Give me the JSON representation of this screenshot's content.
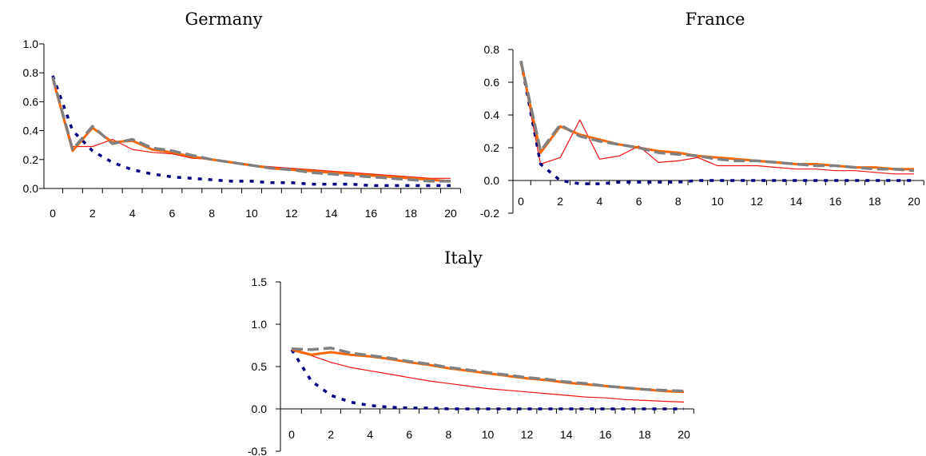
{
  "chart_data": [
    {
      "type": "line",
      "title": "Germany",
      "xlabel": "",
      "ylabel": "",
      "x_ticks": [
        0,
        2,
        4,
        6,
        8,
        10,
        12,
        14,
        16,
        18,
        20
      ],
      "y_ticks": [
        "0.0",
        "0.2",
        "0.4",
        "0.6",
        "0.8",
        "1.0"
      ],
      "ylim": [
        0,
        1.0
      ],
      "grid": false,
      "series": [
        {
          "color": "#ff6600",
          "style": "solid-thick",
          "values": [
            0.76,
            0.26,
            0.42,
            0.32,
            0.33,
            0.27,
            0.25,
            0.22,
            0.2,
            0.18,
            0.16,
            0.14,
            0.13,
            0.12,
            0.11,
            0.1,
            0.09,
            0.08,
            0.07,
            0.06,
            0.05
          ]
        },
        {
          "color": "#808080",
          "style": "dashed-thick",
          "values": [
            0.77,
            0.27,
            0.43,
            0.31,
            0.34,
            0.28,
            0.26,
            0.23,
            0.2,
            0.18,
            0.16,
            0.14,
            0.13,
            0.11,
            0.1,
            0.09,
            0.08,
            0.07,
            0.06,
            0.05,
            0.05
          ]
        },
        {
          "color": "#ee1111",
          "style": "solid-thin",
          "values": [
            0.76,
            0.29,
            0.29,
            0.34,
            0.27,
            0.25,
            0.24,
            0.21,
            0.2,
            0.18,
            0.16,
            0.15,
            0.14,
            0.13,
            0.12,
            0.11,
            0.1,
            0.09,
            0.08,
            0.07,
            0.07
          ]
        },
        {
          "color": "#000080",
          "style": "dotted-thick",
          "values": [
            0.78,
            0.4,
            0.26,
            0.18,
            0.13,
            0.1,
            0.08,
            0.07,
            0.06,
            0.05,
            0.05,
            0.04,
            0.04,
            0.03,
            0.03,
            0.03,
            0.02,
            0.02,
            0.02,
            0.02,
            0.02
          ]
        }
      ]
    },
    {
      "type": "line",
      "title": "France",
      "xlabel": "",
      "ylabel": "",
      "x_ticks": [
        0,
        2,
        4,
        6,
        8,
        10,
        12,
        14,
        16,
        18,
        20
      ],
      "y_ticks": [
        "-0.2",
        "0.0",
        "0.2",
        "0.4",
        "0.6",
        "0.8"
      ],
      "ylim": [
        -0.2,
        0.8
      ],
      "grid": false,
      "series": [
        {
          "color": "#ff6600",
          "style": "solid-thick",
          "values": [
            0.72,
            0.17,
            0.33,
            0.28,
            0.25,
            0.22,
            0.2,
            0.18,
            0.17,
            0.15,
            0.14,
            0.13,
            0.12,
            0.11,
            0.1,
            0.1,
            0.09,
            0.08,
            0.08,
            0.07,
            0.07
          ]
        },
        {
          "color": "#808080",
          "style": "dashed-thick",
          "values": [
            0.73,
            0.18,
            0.34,
            0.27,
            0.24,
            0.22,
            0.2,
            0.17,
            0.16,
            0.15,
            0.13,
            0.12,
            0.12,
            0.11,
            0.1,
            0.09,
            0.09,
            0.08,
            0.07,
            0.07,
            0.06
          ]
        },
        {
          "color": "#ee1111",
          "style": "solid-thin",
          "values": [
            0.72,
            0.1,
            0.14,
            0.37,
            0.13,
            0.15,
            0.21,
            0.11,
            0.12,
            0.14,
            0.09,
            0.09,
            0.09,
            0.08,
            0.07,
            0.07,
            0.06,
            0.06,
            0.05,
            0.04,
            0.04
          ]
        },
        {
          "color": "#000080",
          "style": "dotted-thick",
          "values": [
            0.73,
            0.1,
            0.0,
            -0.02,
            -0.02,
            -0.01,
            -0.01,
            -0.01,
            -0.01,
            0.0,
            0.0,
            0.0,
            0.0,
            0.0,
            0.0,
            0.0,
            0.0,
            0.0,
            0.0,
            0.0,
            0.0
          ]
        }
      ]
    },
    {
      "type": "line",
      "title": "Italy",
      "xlabel": "",
      "ylabel": "",
      "x_ticks": [
        0,
        2,
        4,
        6,
        8,
        10,
        12,
        14,
        16,
        18,
        20
      ],
      "y_ticks": [
        "-0.5",
        "0.0",
        "0.5",
        "1.0",
        "1.5"
      ],
      "ylim": [
        -0.5,
        1.5
      ],
      "grid": false,
      "series": [
        {
          "color": "#ff6600",
          "style": "solid-thick",
          "values": [
            0.7,
            0.64,
            0.67,
            0.64,
            0.62,
            0.59,
            0.55,
            0.52,
            0.48,
            0.45,
            0.42,
            0.39,
            0.36,
            0.34,
            0.31,
            0.29,
            0.27,
            0.25,
            0.23,
            0.21,
            0.2
          ]
        },
        {
          "color": "#808080",
          "style": "dashed-thick",
          "values": [
            0.71,
            0.7,
            0.72,
            0.66,
            0.63,
            0.6,
            0.56,
            0.53,
            0.49,
            0.46,
            0.43,
            0.4,
            0.37,
            0.35,
            0.32,
            0.3,
            0.27,
            0.25,
            0.23,
            0.22,
            0.21
          ]
        },
        {
          "color": "#ee1111",
          "style": "solid-thin",
          "values": [
            0.69,
            0.63,
            0.55,
            0.49,
            0.45,
            0.41,
            0.37,
            0.33,
            0.3,
            0.27,
            0.24,
            0.22,
            0.2,
            0.18,
            0.16,
            0.14,
            0.13,
            0.11,
            0.1,
            0.09,
            0.08
          ]
        },
        {
          "color": "#000080",
          "style": "dotted-thick",
          "values": [
            0.7,
            0.33,
            0.16,
            0.08,
            0.04,
            0.02,
            0.01,
            0.01,
            0.0,
            0.0,
            0.0,
            0.0,
            0.0,
            0.0,
            0.0,
            0.0,
            0.0,
            0.0,
            0.0,
            0.0,
            0.0
          ]
        }
      ]
    }
  ]
}
